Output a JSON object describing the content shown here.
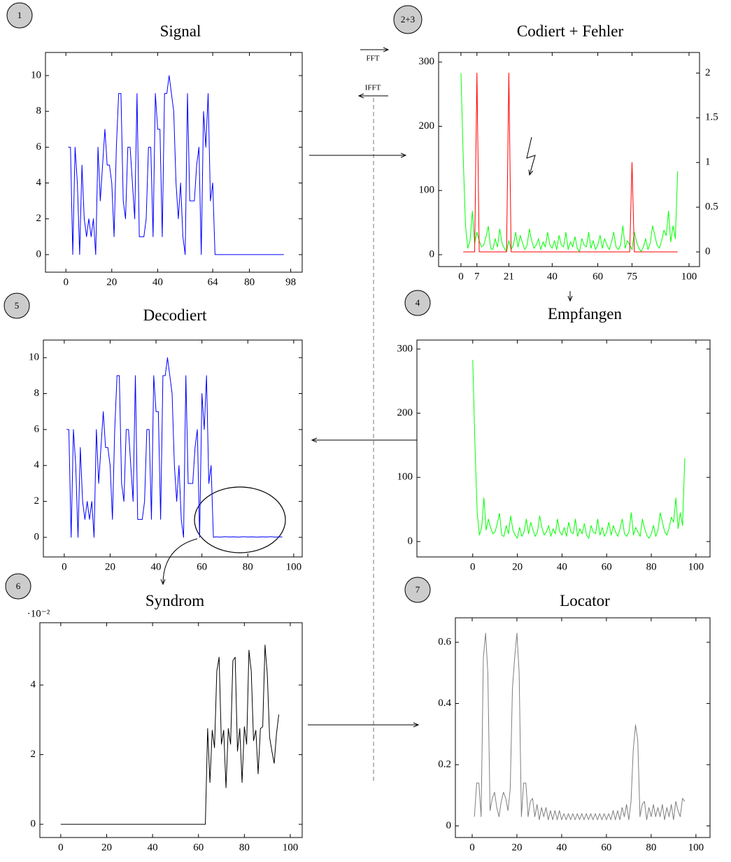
{
  "chart_data": [
    {
      "type": "line",
      "title": "Signal",
      "xlim": [
        -8.9,
        103
      ],
      "ylim": [
        -0.98,
        11.29
      ],
      "xticks": [
        0,
        20,
        40,
        64,
        80,
        98
      ],
      "yticks": [
        0,
        2,
        4,
        6,
        8,
        10
      ],
      "x": [
        1,
        2,
        3,
        4,
        5,
        6,
        7,
        8,
        9,
        10,
        11,
        12,
        13,
        14,
        15,
        16,
        17,
        18,
        19,
        20,
        21,
        22,
        23,
        24,
        25,
        26,
        27,
        28,
        29,
        30,
        31,
        32,
        33,
        34,
        35,
        36,
        37,
        38,
        39,
        40,
        41,
        42,
        43,
        44,
        45,
        46,
        47,
        48,
        49,
        50,
        51,
        52,
        53,
        54,
        55,
        56,
        57,
        58,
        59,
        60,
        61,
        62,
        63,
        64,
        65,
        95
      ],
      "series": [
        {
          "color": "#0000ff",
          "values": [
            6,
            6,
            0,
            6,
            4,
            0,
            5,
            2,
            1,
            2,
            1,
            2,
            0,
            6,
            3,
            5,
            7,
            5,
            5,
            4,
            1,
            6,
            9,
            9,
            3,
            2,
            6,
            6,
            4,
            2,
            9,
            1,
            1,
            1,
            2,
            6,
            6,
            1,
            9,
            7,
            7,
            1,
            9,
            9,
            10,
            9,
            8,
            4,
            2,
            4,
            1,
            0,
            9,
            3,
            3,
            3,
            5,
            6,
            0,
            8,
            6,
            9,
            3,
            4,
            0,
            0
          ]
        }
      ]
    },
    {
      "type": "line",
      "title": "Codiert + Fehler",
      "xlim": [
        -9.8,
        104.6
      ],
      "ylim": [
        -18.5,
        315
      ],
      "y2lim": [
        -0.164,
        2.23
      ],
      "xticks": [
        0,
        7,
        21,
        40,
        60,
        75,
        100
      ],
      "yticks": [
        0,
        100,
        200,
        300
      ],
      "y2ticks": [
        0,
        0.5,
        1,
        1.5,
        2
      ],
      "x": [
        0,
        1,
        2,
        3,
        4,
        5,
        6,
        7,
        8,
        9,
        10,
        11,
        12,
        13,
        14,
        15,
        16,
        17,
        18,
        19,
        20,
        21,
        22,
        23,
        24,
        25,
        26,
        27,
        28,
        29,
        30,
        31,
        32,
        33,
        34,
        35,
        36,
        37,
        38,
        39,
        40,
        41,
        42,
        43,
        44,
        45,
        46,
        47,
        48,
        49,
        50,
        51,
        52,
        53,
        54,
        55,
        56,
        57,
        58,
        59,
        60,
        61,
        62,
        63,
        64,
        65,
        66,
        67,
        68,
        69,
        70,
        71,
        72,
        73,
        74,
        75,
        76,
        77,
        78,
        79,
        80,
        81,
        82,
        83,
        84,
        85,
        86,
        87,
        88,
        89,
        90,
        91,
        92,
        93,
        94,
        95
      ],
      "series": [
        {
          "color": "#00ff00",
          "values": [
            283,
            150,
            45,
            10,
            22,
            68,
            18,
            35,
            22,
            12,
            15,
            28,
            44,
            10,
            8,
            25,
            12,
            40,
            18,
            10,
            5,
            22,
            8,
            15,
            35,
            12,
            30,
            18,
            8,
            15,
            40,
            22,
            10,
            15,
            25,
            8,
            20,
            12,
            35,
            15,
            10,
            22,
            8,
            30,
            15,
            12,
            35,
            8,
            20,
            12,
            28,
            10,
            5,
            25,
            15,
            12,
            35,
            10,
            22,
            8,
            15,
            30,
            10,
            25,
            15,
            8,
            20,
            35,
            12,
            8,
            15,
            45,
            10,
            22,
            15,
            8,
            35,
            20,
            10,
            5,
            12,
            25,
            8,
            18,
            45,
            30,
            15,
            10,
            22,
            38,
            30,
            68,
            20,
            45,
            25,
            130
          ]
        },
        {
          "color": "#ff0000",
          "axis": "y2",
          "x": [
            1,
            6,
            7,
            8,
            20,
            21,
            22,
            74,
            75,
            76,
            95
          ],
          "values": [
            0,
            0,
            2,
            0,
            0,
            2,
            0,
            0,
            1,
            0,
            0
          ]
        }
      ]
    },
    {
      "type": "line",
      "title": "Empfangen",
      "xlim": [
        -25,
        106.3
      ],
      "ylim": [
        -24,
        314
      ],
      "xticks": [
        0,
        20,
        40,
        60,
        80,
        100
      ],
      "yticks": [
        0,
        100,
        200,
        300
      ],
      "x": [
        0,
        1,
        2,
        3,
        4,
        5,
        6,
        7,
        8,
        9,
        10,
        11,
        12,
        13,
        14,
        15,
        16,
        17,
        18,
        19,
        20,
        21,
        22,
        23,
        24,
        25,
        26,
        27,
        28,
        29,
        30,
        31,
        32,
        33,
        34,
        35,
        36,
        37,
        38,
        39,
        40,
        41,
        42,
        43,
        44,
        45,
        46,
        47,
        48,
        49,
        50,
        51,
        52,
        53,
        54,
        55,
        56,
        57,
        58,
        59,
        60,
        61,
        62,
        63,
        64,
        65,
        66,
        67,
        68,
        69,
        70,
        71,
        72,
        73,
        74,
        75,
        76,
        77,
        78,
        79,
        80,
        81,
        82,
        83,
        84,
        85,
        86,
        87,
        88,
        89,
        90,
        91,
        92,
        93,
        94,
        95
      ],
      "series": [
        {
          "color": "#00ff00",
          "values": [
            283,
            150,
            45,
            10,
            22,
            68,
            18,
            35,
            22,
            12,
            15,
            28,
            44,
            10,
            8,
            25,
            12,
            40,
            18,
            10,
            5,
            22,
            8,
            15,
            35,
            12,
            30,
            18,
            8,
            15,
            40,
            22,
            10,
            15,
            25,
            8,
            20,
            12,
            35,
            15,
            10,
            22,
            8,
            30,
            15,
            12,
            35,
            8,
            20,
            12,
            28,
            10,
            5,
            25,
            15,
            12,
            35,
            10,
            22,
            8,
            15,
            30,
            10,
            25,
            15,
            8,
            20,
            35,
            12,
            8,
            15,
            45,
            10,
            22,
            15,
            8,
            35,
            20,
            10,
            5,
            12,
            25,
            8,
            18,
            45,
            30,
            15,
            10,
            22,
            38,
            30,
            68,
            20,
            45,
            25,
            130
          ]
        }
      ]
    },
    {
      "type": "line",
      "title": "Decodiert",
      "xlim": [
        -9.1,
        103.7
      ],
      "ylim": [
        -1.09,
        10.98
      ],
      "xticks": [
        0,
        20,
        40,
        60,
        80,
        100
      ],
      "yticks": [
        0,
        2,
        4,
        6,
        8,
        10
      ],
      "x": [
        1,
        2,
        3,
        4,
        5,
        6,
        7,
        8,
        9,
        10,
        11,
        12,
        13,
        14,
        15,
        16,
        17,
        18,
        19,
        20,
        21,
        22,
        23,
        24,
        25,
        26,
        27,
        28,
        29,
        30,
        31,
        32,
        33,
        34,
        35,
        36,
        37,
        38,
        39,
        40,
        41,
        42,
        43,
        44,
        45,
        46,
        47,
        48,
        49,
        50,
        51,
        52,
        53,
        54,
        55,
        56,
        57,
        58,
        59,
        60,
        61,
        62,
        63,
        64,
        65,
        66,
        68,
        70,
        72,
        74,
        76,
        78,
        80,
        82,
        84,
        86,
        88,
        90,
        92,
        94,
        95
      ],
      "series": [
        {
          "color": "#0000ff",
          "values": [
            6,
            6,
            0,
            6,
            4,
            0,
            5,
            2,
            1,
            2,
            1,
            2,
            0,
            6,
            3,
            5,
            7,
            5,
            5,
            4,
            1,
            6,
            9,
            9,
            3,
            2,
            6,
            6,
            4,
            2,
            9,
            1,
            1,
            1,
            2,
            6,
            6,
            1,
            9,
            7,
            7,
            1,
            9,
            9,
            10,
            9,
            8,
            4,
            2,
            4,
            1,
            0,
            9,
            3,
            3,
            3,
            5,
            6,
            0,
            8,
            6,
            9,
            3,
            4,
            0,
            0.03,
            0.01,
            0.04,
            0.02,
            0.03,
            0.01,
            0.04,
            0.02,
            0.03,
            0.01,
            0.03,
            0.02,
            0.04,
            0.01,
            0.03,
            0.02
          ]
        }
      ]
    },
    {
      "type": "line",
      "title": "Syndrom",
      "y_scale_label": "·10⁻²",
      "xlim": [
        -9.1,
        105.2
      ],
      "ylim": [
        -0.38,
        5.79
      ],
      "xticks": [
        0,
        20,
        40,
        60,
        80,
        100
      ],
      "yticks": [
        0,
        2,
        4
      ],
      "x": [
        0,
        63,
        64,
        65,
        66,
        67,
        68,
        69,
        70,
        71,
        72,
        73,
        74,
        75,
        76,
        77,
        78,
        79,
        80,
        81,
        82,
        83,
        84,
        85,
        86,
        87,
        88,
        89,
        90,
        91,
        92,
        93,
        94,
        95
      ],
      "series": [
        {
          "color": "#000000",
          "values": [
            0,
            0,
            2.75,
            1.2,
            2.7,
            2.2,
            4.4,
            4.8,
            2.3,
            2.7,
            1.05,
            2.75,
            2.3,
            4.7,
            4.8,
            2.1,
            2.75,
            1.2,
            2.8,
            2.3,
            5.0,
            4.4,
            2.4,
            2.7,
            1.45,
            2.75,
            2.8,
            5.15,
            4.3,
            2.5,
            2.1,
            1.75,
            2.6,
            3.15
          ]
        }
      ]
    },
    {
      "type": "line",
      "title": "Locator",
      "xlim": [
        -7.5,
        106.3
      ],
      "ylim": [
        -0.038,
        0.68
      ],
      "xticks": [
        0,
        20,
        40,
        60,
        80,
        100
      ],
      "yticks": [
        0,
        0.2,
        0.4,
        0.6
      ],
      "x": [
        1,
        2,
        3,
        4,
        5,
        6,
        7,
        8,
        9,
        10,
        11,
        12,
        13,
        14,
        15,
        16,
        17,
        18,
        19,
        20,
        21,
        22,
        23,
        24,
        25,
        26,
        27,
        28,
        29,
        30,
        31,
        32,
        33,
        34,
        35,
        36,
        37,
        38,
        39,
        40,
        41,
        42,
        43,
        44,
        45,
        46,
        47,
        48,
        49,
        50,
        51,
        52,
        53,
        54,
        55,
        56,
        57,
        58,
        59,
        60,
        61,
        62,
        63,
        64,
        65,
        66,
        67,
        68,
        69,
        70,
        71,
        72,
        73,
        74,
        75,
        76,
        77,
        78,
        79,
        80,
        81,
        82,
        83,
        84,
        85,
        86,
        87,
        88,
        89,
        90,
        91,
        92,
        93,
        94,
        95
      ],
      "series": [
        {
          "color": "#7f7f7f",
          "values": [
            0.03,
            0.14,
            0.14,
            0.03,
            0.55,
            0.63,
            0.5,
            0.05,
            0.09,
            0.11,
            0.06,
            0.03,
            0.08,
            0.11,
            0.09,
            0.05,
            0.12,
            0.45,
            0.55,
            0.63,
            0.5,
            0.03,
            0.14,
            0.14,
            0.03,
            0.08,
            0.09,
            0.03,
            0.07,
            0.02,
            0.06,
            0.03,
            0.06,
            0.02,
            0.05,
            0.02,
            0.05,
            0.02,
            0.05,
            0.02,
            0.04,
            0.02,
            0.04,
            0.02,
            0.04,
            0.02,
            0.04,
            0.02,
            0.04,
            0.02,
            0.04,
            0.02,
            0.04,
            0.02,
            0.04,
            0.02,
            0.04,
            0.02,
            0.04,
            0.02,
            0.04,
            0.02,
            0.05,
            0.02,
            0.05,
            0.02,
            0.06,
            0.03,
            0.07,
            0.02,
            0.08,
            0.25,
            0.33,
            0.28,
            0.03,
            0.07,
            0.08,
            0.02,
            0.06,
            0.03,
            0.07,
            0.03,
            0.06,
            0.03,
            0.07,
            0.02,
            0.06,
            0.03,
            0.07,
            0.02,
            0.08,
            0.05,
            0.03,
            0.09,
            0.08
          ]
        }
      ]
    }
  ],
  "annotations": {
    "steps": [
      "1",
      "2+3",
      "4",
      "5",
      "6",
      "7"
    ],
    "fft": "FFT",
    "ifft": "IFFT"
  }
}
